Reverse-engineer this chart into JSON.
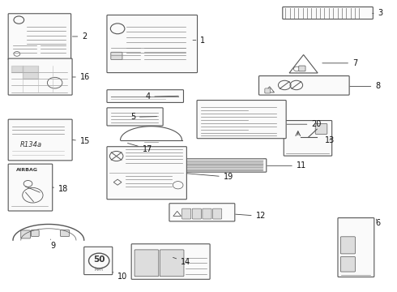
{
  "bg_color": "#ffffff",
  "line_color": "#555555",
  "fill_color": "#f8f8f8",
  "dark_fill": "#cccccc",
  "label_positions": {
    "1": [
      0.505,
      0.865,
      0.48,
      0.865
    ],
    "2": [
      0.205,
      0.878,
      0.175,
      0.878
    ],
    "3": [
      0.955,
      0.958,
      0.935,
      0.958
    ],
    "4": [
      0.365,
      0.67,
      0.455,
      0.673
    ],
    "5": [
      0.327,
      0.6,
      0.4,
      0.602
    ],
    "6": [
      0.948,
      0.235,
      0.948,
      0.255
    ],
    "7": [
      0.89,
      0.786,
      0.808,
      0.786
    ],
    "8": [
      0.948,
      0.706,
      0.878,
      0.706
    ],
    "9": [
      0.125,
      0.155,
      0.125,
      0.178
    ],
    "10": [
      0.295,
      0.048,
      0.278,
      0.068
    ],
    "11": [
      0.748,
      0.432,
      0.668,
      0.432
    ],
    "12": [
      0.645,
      0.258,
      0.588,
      0.265
    ],
    "13": [
      0.82,
      0.52,
      0.835,
      0.527
    ],
    "14": [
      0.455,
      0.1,
      0.43,
      0.118
    ],
    "15": [
      0.2,
      0.516,
      0.175,
      0.522
    ],
    "16": [
      0.2,
      0.738,
      0.175,
      0.738
    ],
    "17": [
      0.358,
      0.49,
      0.315,
      0.512
    ],
    "18": [
      0.145,
      0.353,
      0.125,
      0.358
    ],
    "19": [
      0.563,
      0.393,
      0.465,
      0.406
    ],
    "20": [
      0.786,
      0.575,
      0.718,
      0.575
    ]
  }
}
